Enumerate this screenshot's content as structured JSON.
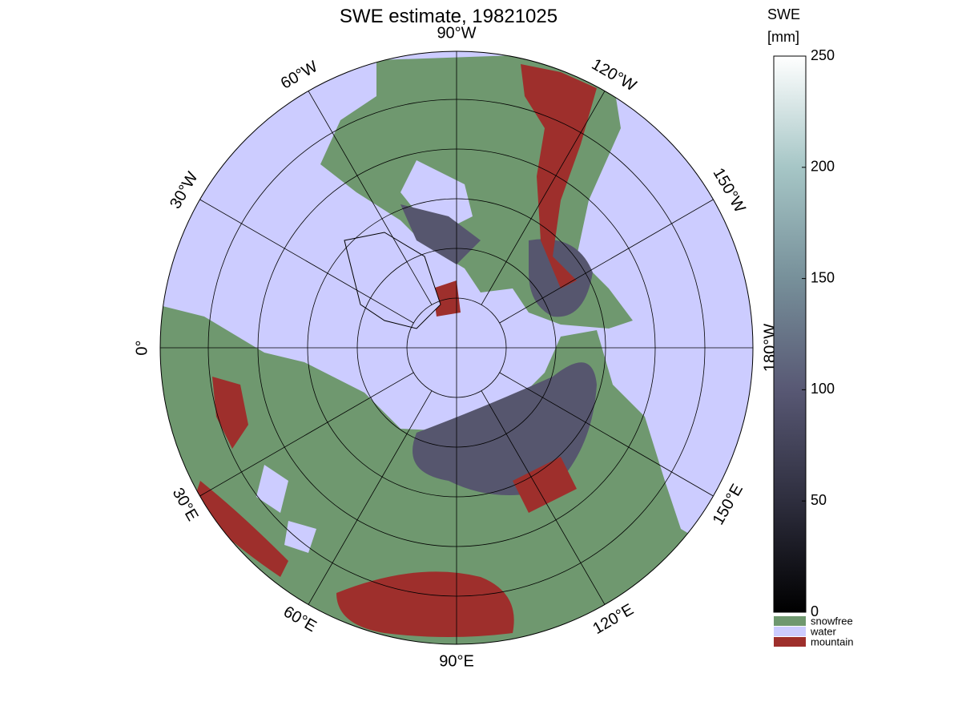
{
  "title": "SWE estimate, 19821025",
  "meridians": [
    {
      "lon": -90,
      "label": "90°W"
    },
    {
      "lon": -120,
      "label": "120°W"
    },
    {
      "lon": -150,
      "label": "150°W"
    },
    {
      "lon": 180,
      "label": "180°W"
    },
    {
      "lon": 150,
      "label": "150°E"
    },
    {
      "lon": 120,
      "label": "120°E"
    },
    {
      "lon": 90,
      "label": "90°E"
    },
    {
      "lon": 60,
      "label": "60°E"
    },
    {
      "lon": 30,
      "label": "30°E"
    },
    {
      "lon": 0,
      "label": "0°"
    },
    {
      "lon": -30,
      "label": "30°W"
    },
    {
      "lon": -60,
      "label": "60°W"
    }
  ],
  "colorbar": {
    "title": [
      "SWE",
      "[mm]"
    ],
    "lim": [
      0,
      250
    ],
    "ticks": [
      0,
      50,
      100,
      150,
      200,
      250
    ]
  },
  "legend": [
    {
      "label": "snowfree",
      "color": "#6f986f"
    },
    {
      "label": "water",
      "color": "#ccccff"
    },
    {
      "label": "mountain",
      "color": "#9e2f2c"
    }
  ]
}
